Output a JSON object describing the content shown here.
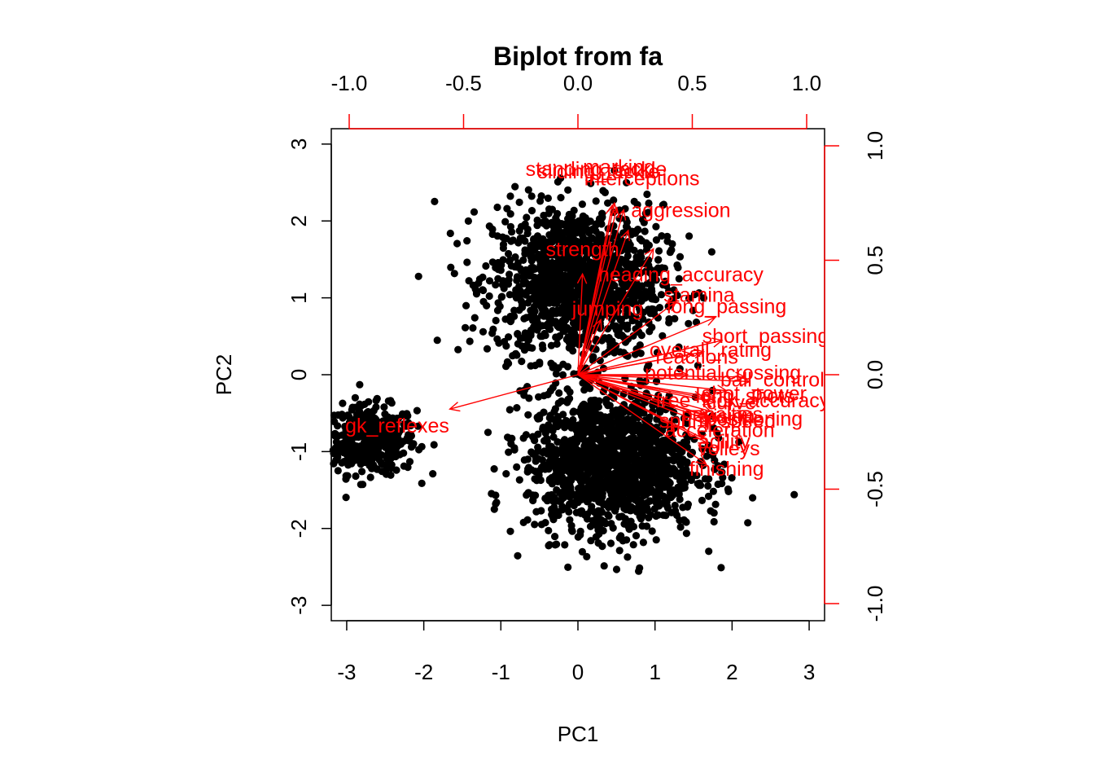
{
  "chart_data": {
    "type": "scatter",
    "subtype": "biplot",
    "title": "Biplot from fa",
    "xlabel": "PC1",
    "ylabel": "PC2",
    "score_axes": {
      "xlim": [
        -3.2,
        3.2
      ],
      "ylim": [
        -3.2,
        3.2
      ],
      "ticks": [
        -3,
        -2,
        -1,
        0,
        1,
        2,
        3
      ]
    },
    "loading_axes": {
      "lim": [
        -1.0,
        1.0
      ],
      "ticks": [
        -1.0,
        -0.5,
        0.0,
        0.5,
        1.0
      ],
      "tick_labels": [
        "-1.0",
        "-0.5",
        "0.0",
        "0.5",
        "1.0"
      ],
      "color": "#ff0000"
    },
    "point_color": "#000000",
    "arrow_color": "#ff0000",
    "clusters": [
      {
        "cx": -2.7,
        "cy": -0.85,
        "sx": 0.3,
        "sy": 0.22,
        "n": 450
      },
      {
        "cx": 0.0,
        "cy": 1.2,
        "sx": 0.55,
        "sy": 0.5,
        "n": 1400
      },
      {
        "cx": 0.45,
        "cy": -1.15,
        "sx": 0.55,
        "sy": 0.45,
        "n": 1500
      }
    ],
    "loadings": [
      {
        "name": "standing_tackle",
        "x": 0.16,
        "y": 0.75,
        "lx": 0.08,
        "ly": 0.9
      },
      {
        "name": "sliding_tackle",
        "x": 0.15,
        "y": 0.74,
        "lx": 0.09,
        "ly": 0.89
      },
      {
        "name": "marking",
        "x": 0.17,
        "y": 0.73,
        "lx": 0.18,
        "ly": 0.91
      },
      {
        "name": "interceptions",
        "x": 0.2,
        "y": 0.72,
        "lx": 0.28,
        "ly": 0.86
      },
      {
        "name": "aggression",
        "x": 0.22,
        "y": 0.63,
        "lx": 0.45,
        "ly": 0.72
      },
      {
        "name": "strength",
        "x": 0.02,
        "y": 0.44,
        "lx": 0.02,
        "ly": 0.55
      },
      {
        "name": "heading_accuracy",
        "x": 0.33,
        "y": 0.55,
        "lx": 0.45,
        "ly": 0.44
      },
      {
        "name": "stamina",
        "x": 0.43,
        "y": 0.32,
        "lx": 0.53,
        "ly": 0.35
      },
      {
        "name": "jumping",
        "x": 0.1,
        "y": 0.24,
        "lx": 0.13,
        "ly": 0.29
      },
      {
        "name": "long_passing",
        "x": 0.6,
        "y": 0.25,
        "lx": 0.65,
        "ly": 0.3
      },
      {
        "name": "short_passing",
        "x": 0.63,
        "y": 0.15,
        "lx": 0.82,
        "ly": 0.17
      },
      {
        "name": "overall_rating",
        "x": 0.55,
        "y": 0.1,
        "lx": 0.58,
        "ly": 0.11
      },
      {
        "name": "reactions",
        "x": 0.5,
        "y": 0.09,
        "lx": 0.52,
        "ly": 0.08
      },
      {
        "name": "potential",
        "x": 0.48,
        "y": 0.0,
        "lx": 0.46,
        "ly": 0.01
      },
      {
        "name": "crossing",
        "x": 0.73,
        "y": -0.01,
        "lx": 0.81,
        "ly": 0.01
      },
      {
        "name": "ball_control",
        "x": 0.75,
        "y": -0.03,
        "lx": 0.85,
        "ly": -0.02
      },
      {
        "name": "shot_power",
        "x": 0.65,
        "y": -0.07,
        "lx": 0.77,
        "ly": -0.08
      },
      {
        "name": "free_kick_accuracy",
        "x": 0.55,
        "y": -0.1,
        "lx": 0.72,
        "ly": -0.11
      },
      {
        "name": "long_shots",
        "x": 0.6,
        "y": -0.1,
        "lx": 0.73,
        "ly": -0.09
      },
      {
        "name": "curve",
        "x": 0.6,
        "y": -0.12,
        "lx": 0.67,
        "ly": -0.12
      },
      {
        "name": "penalties",
        "x": 0.58,
        "y": -0.16,
        "lx": 0.63,
        "ly": -0.17
      },
      {
        "name": "vision",
        "x": 0.57,
        "y": -0.18,
        "lx": 0.66,
        "ly": -0.18
      },
      {
        "name": "positioning",
        "x": 0.62,
        "y": -0.2,
        "lx": 0.77,
        "ly": -0.19
      },
      {
        "name": "sprint_speed",
        "x": 0.58,
        "y": -0.2,
        "lx": 0.61,
        "ly": -0.2
      },
      {
        "name": "acceleration",
        "x": 0.57,
        "y": -0.22,
        "lx": 0.62,
        "ly": -0.24
      },
      {
        "name": "agility",
        "x": 0.55,
        "y": -0.28,
        "lx": 0.64,
        "ly": -0.29
      },
      {
        "name": "volleys",
        "x": 0.57,
        "y": -0.3,
        "lx": 0.66,
        "ly": -0.32
      },
      {
        "name": "finishing",
        "x": 0.56,
        "y": -0.39,
        "lx": 0.65,
        "ly": -0.41
      },
      {
        "name": "gk_reflexes",
        "x": -0.56,
        "y": -0.15,
        "lx": -0.79,
        "ly": -0.22
      }
    ]
  }
}
